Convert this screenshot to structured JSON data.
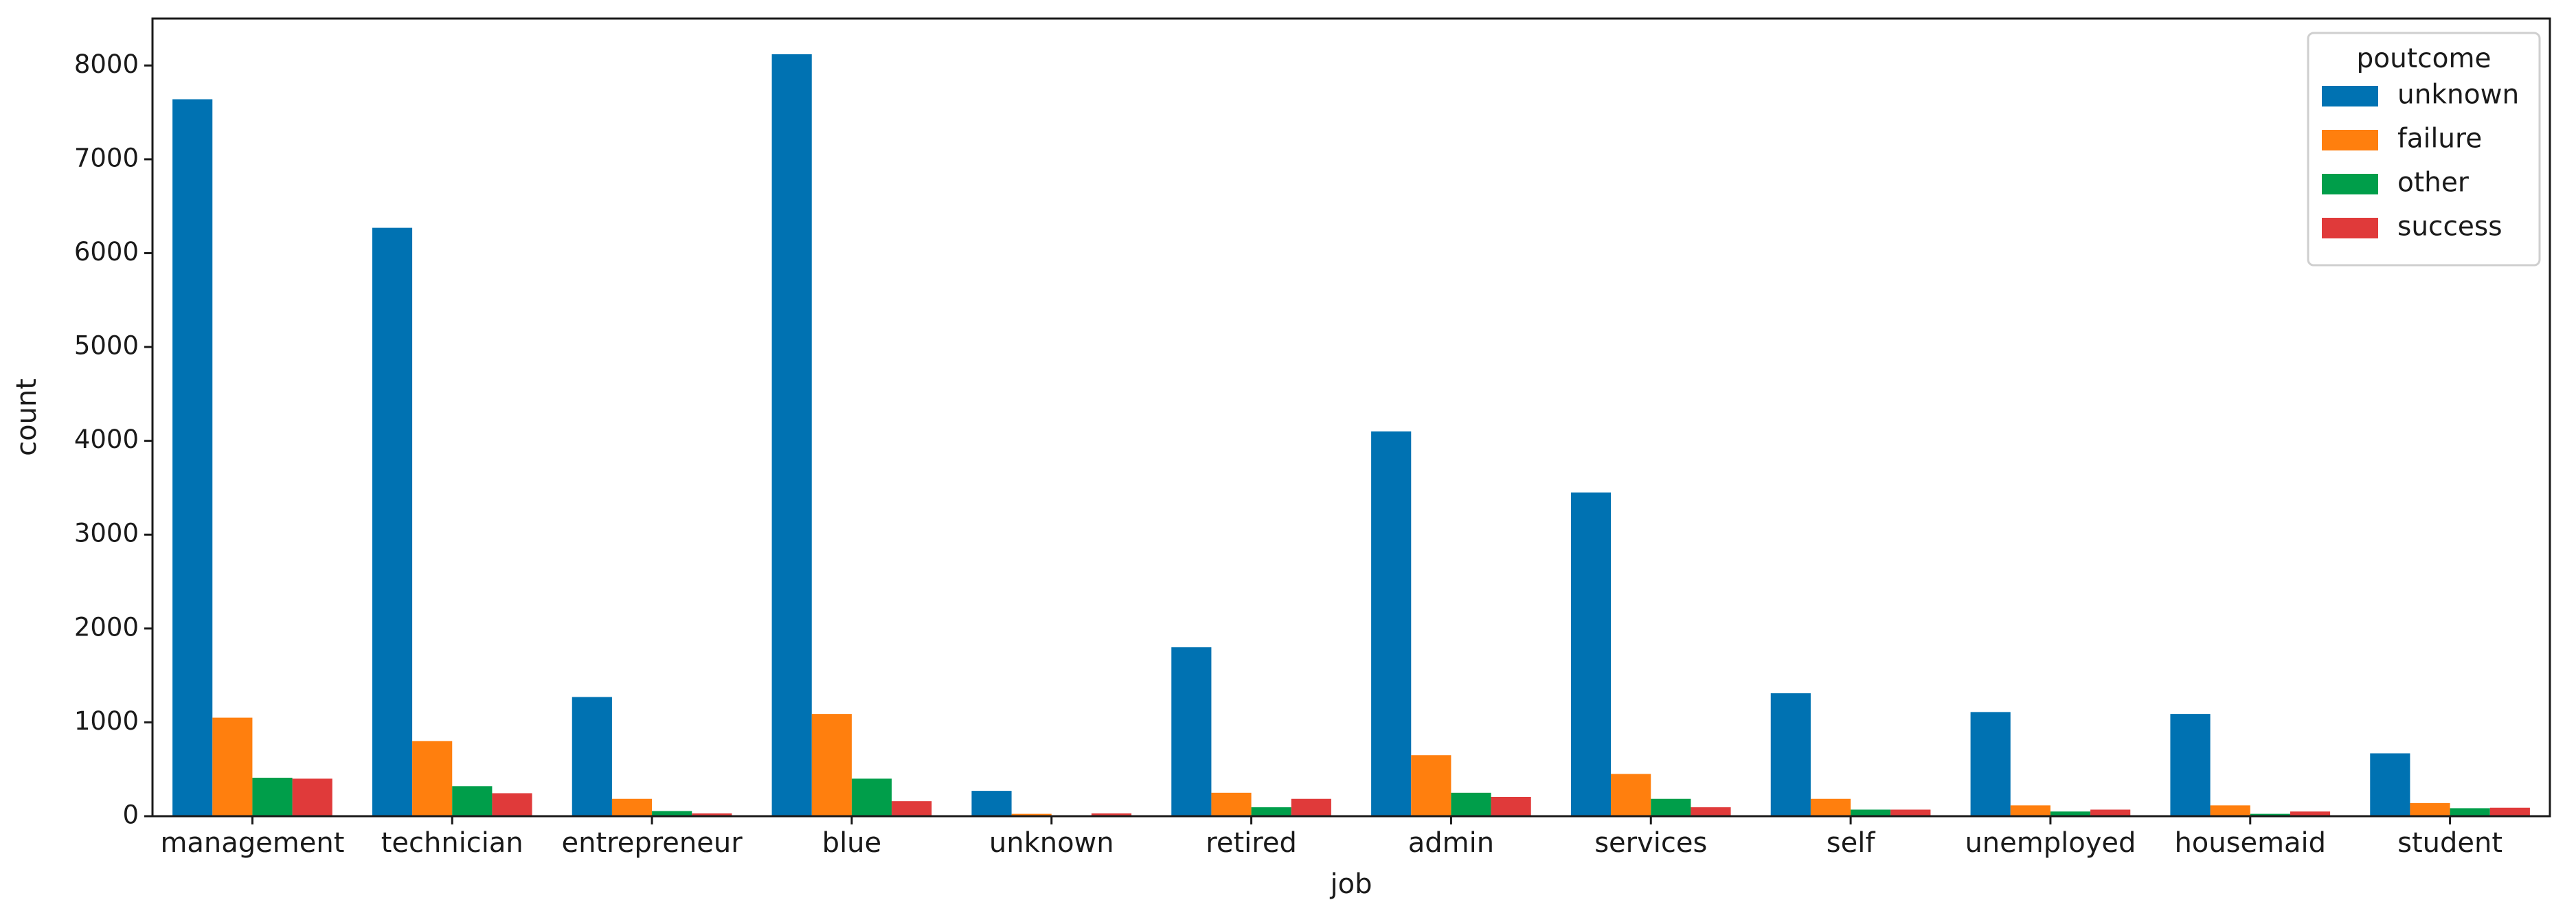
{
  "chart_data": {
    "type": "bar",
    "title": "",
    "xlabel": "job",
    "ylabel": "count",
    "ylim": [
      0,
      8500
    ],
    "yticks": [
      0,
      1000,
      2000,
      3000,
      4000,
      5000,
      6000,
      7000,
      8000
    ],
    "grid": false,
    "legend": {
      "title": "poutcome",
      "placement": "top-right"
    },
    "categories": [
      "management",
      "technician",
      "entrepreneur",
      "blue",
      "unknown",
      "retired",
      "admin",
      "services",
      "self",
      "unemployed",
      "housemaid",
      "student"
    ],
    "series": [
      {
        "name": "unknown",
        "color": "#0072b2",
        "values": [
          7640,
          6270,
          1270,
          8120,
          270,
          1800,
          4100,
          3450,
          1310,
          1110,
          1090,
          670
        ]
      },
      {
        "name": "failure",
        "color": "#ff7f0e",
        "values": [
          1050,
          800,
          185,
          1090,
          25,
          250,
          650,
          450,
          185,
          115,
          115,
          140
        ]
      },
      {
        "name": "other",
        "color": "#009e4a",
        "values": [
          410,
          320,
          55,
          400,
          5,
          95,
          250,
          185,
          70,
          50,
          25,
          85
        ]
      },
      {
        "name": "success",
        "color": "#e03a3a",
        "values": [
          400,
          245,
          30,
          160,
          30,
          185,
          205,
          95,
          70,
          70,
          50,
          90
        ]
      }
    ]
  }
}
